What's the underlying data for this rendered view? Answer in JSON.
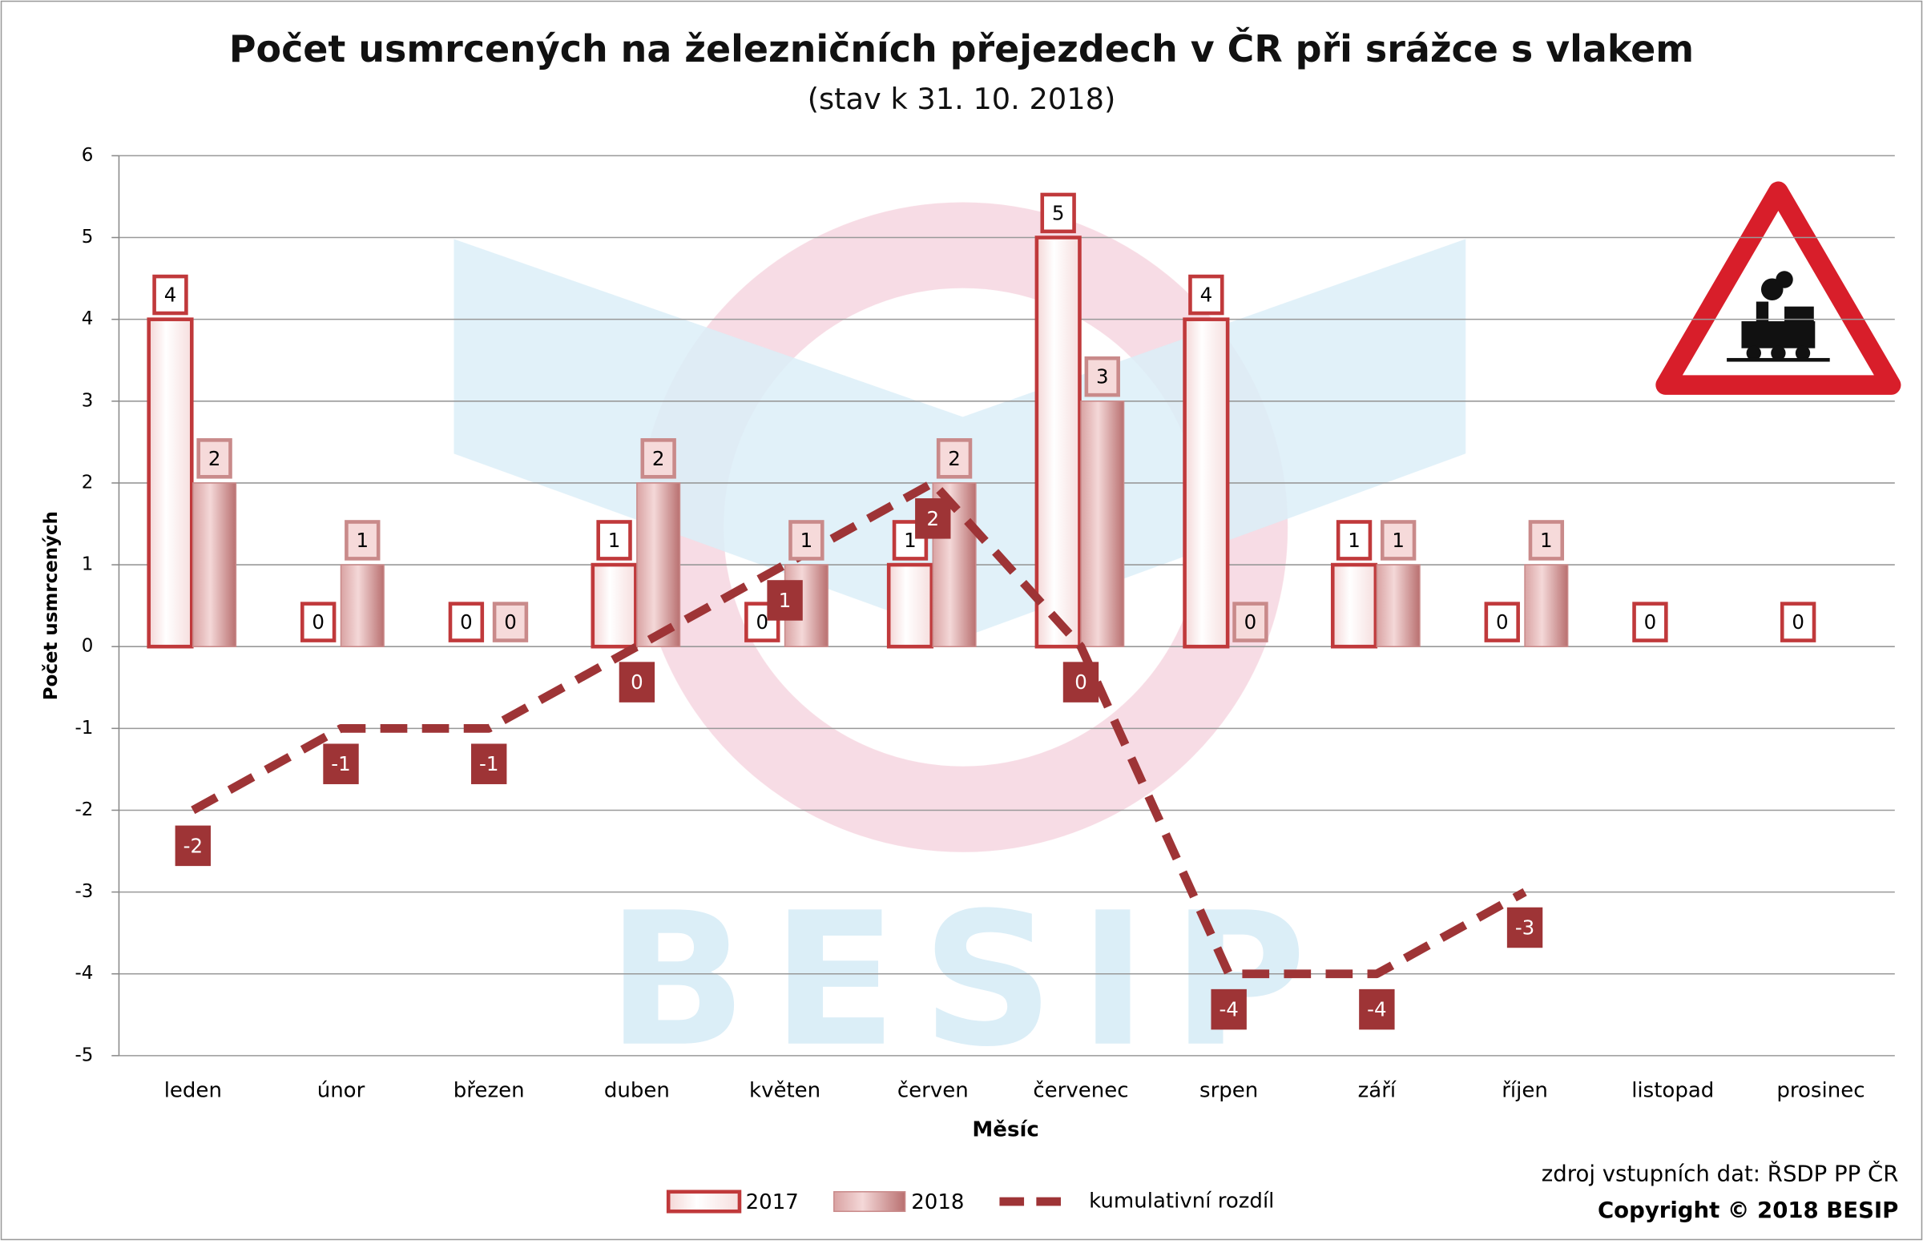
{
  "chart_data": {
    "type": "bar-line",
    "title": "Počet usmrcených na železničních přejezdech v ČR při srážce s vlakem",
    "subtitle": "(stav k 31. 10. 2018)",
    "y_label": "Počet usmrcených",
    "x_label": "Měsíc",
    "source": "zdroj vstupních dat: ŘSDP PP ČR",
    "copyright": "Copyright © 2018 BESIP",
    "watermark": "BESIP",
    "categories": [
      "leden",
      "únor",
      "březen",
      "duben",
      "květen",
      "červen",
      "červenec",
      "srpen",
      "září",
      "říjen",
      "listopad",
      "prosinec"
    ],
    "series": [
      {
        "name": "2017",
        "type": "bar",
        "color": "#c0393b",
        "values": [
          4,
          0,
          0,
          1,
          0,
          1,
          5,
          4,
          1,
          0,
          0,
          0
        ]
      },
      {
        "name": "2018",
        "type": "bar",
        "color": "#c98a8a",
        "values": [
          2,
          1,
          0,
          2,
          1,
          2,
          3,
          0,
          1,
          1,
          null,
          null
        ]
      },
      {
        "name": "kumulativní rozdíl",
        "type": "line",
        "color": "#9e3436",
        "values": [
          -2,
          -1,
          -1,
          0,
          1,
          2,
          0,
          -4,
          -4,
          -3,
          null,
          null
        ]
      }
    ],
    "ylim": [
      -5,
      6
    ],
    "yticks": [
      -5,
      -4,
      -3,
      -2,
      -1,
      0,
      1,
      2,
      3,
      4,
      5,
      6
    ],
    "grid": true,
    "legend": "bottom"
  }
}
